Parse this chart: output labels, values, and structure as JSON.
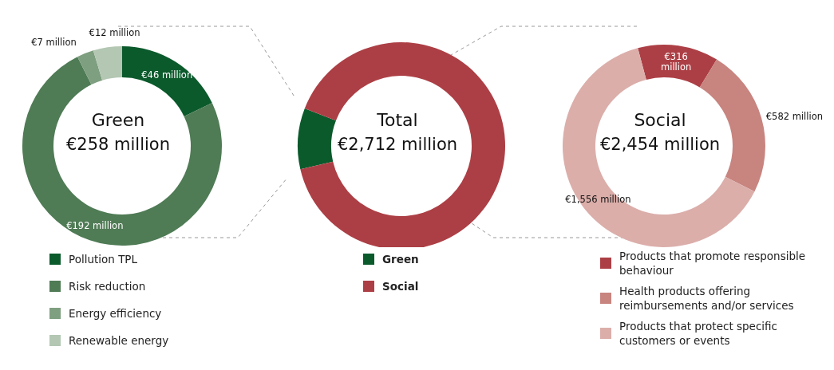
{
  "chart_data": [
    {
      "type": "donut",
      "title": "Green",
      "subtitle": "€258 million",
      "categories": [
        "Pollution TPL",
        "Risk reduction",
        "Energy efficiency",
        "Renewable energy"
      ],
      "values": [
        46,
        192,
        7,
        12
      ],
      "colors": [
        "#0b5a2c",
        "#4f7b55",
        "#7e9f80",
        "#b3c7b2"
      ],
      "value_labels": [
        "€46 million",
        "€192 million",
        "€7 million",
        "€12 million"
      ],
      "legend": "bottom"
    },
    {
      "type": "donut",
      "title": "Total",
      "subtitle": "€2,712 million",
      "categories": [
        "Green",
        "Social"
      ],
      "values": [
        9.5,
        90.5
      ],
      "colors": [
        "#0b5a2c",
        "#ac3f45"
      ],
      "legend": "bottom"
    },
    {
      "type": "donut",
      "title": "Social",
      "subtitle": "€2,454 million",
      "categories": [
        "Products that promote responsible behaviour",
        "Health products offering reimbursements and/or services",
        "Products that protect specific customers or events"
      ],
      "values": [
        316,
        582,
        1556
      ],
      "colors": [
        "#ac3f45",
        "#c8847f",
        "#dbaeaa"
      ],
      "value_labels": [
        "€316 million",
        "€582 million",
        "€1,556 million"
      ],
      "legend": "bottom"
    }
  ]
}
